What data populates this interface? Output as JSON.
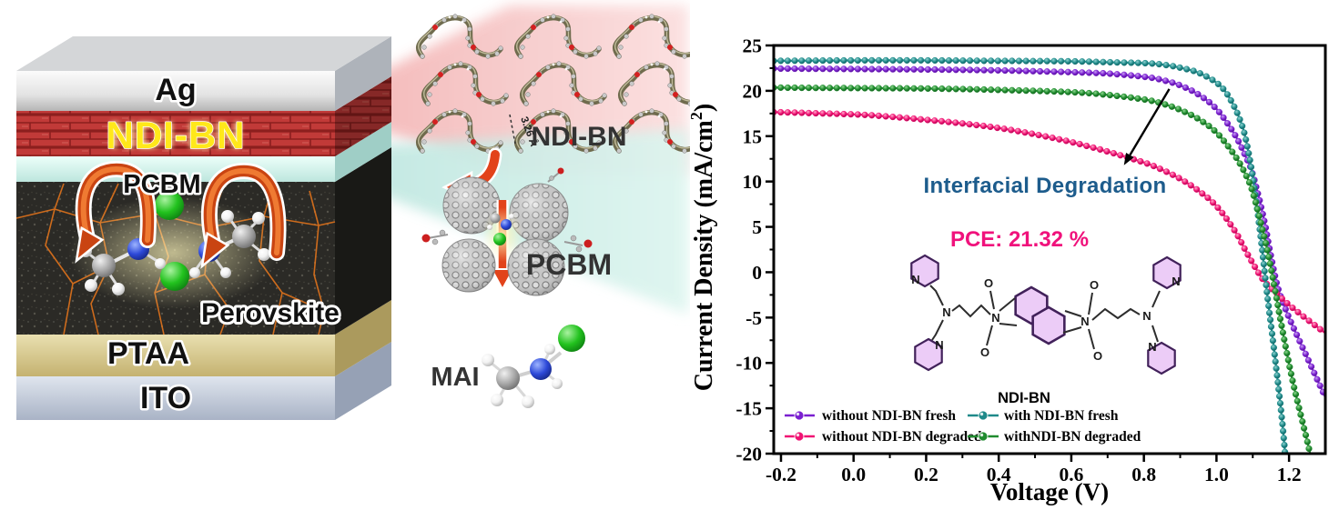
{
  "figure": {
    "device": {
      "layers": [
        {
          "label": "Ag",
          "color": "#d9d9d9"
        },
        {
          "label": "NDI-BN",
          "color": "#c13a38",
          "label_color": "#ffe81a"
        },
        {
          "label": "PCBM",
          "color": "#d9f3ec"
        },
        {
          "label": "Perovskite",
          "color": "#2b2a26"
        },
        {
          "label": "PTAA",
          "color": "#d8cc90"
        },
        {
          "label": "ITO",
          "color": "#c6cdd9"
        }
      ]
    },
    "molecular": {
      "ndi_bn": "NDI-BN",
      "pcbm": "PCBM",
      "mai": "MAI",
      "pi_distance": "3.26 Å"
    }
  },
  "chart_extras": {
    "n": "N",
    "o": "O"
  },
  "chart_data": {
    "type": "line",
    "title": "",
    "xlabel": "Voltage (V)",
    "ylabel": "Current Density (mA/cm²)",
    "ylabel_parts": [
      "Current Density (mA/cm",
      "2",
      ")"
    ],
    "xlim": [
      -0.22,
      1.3
    ],
    "ylim": [
      -20,
      25
    ],
    "grid": false,
    "x_ticks": [
      -0.2,
      0.0,
      0.2,
      0.4,
      0.6,
      0.8,
      1.0,
      1.2
    ],
    "x_tick_labels": [
      "-0.2",
      "0.0",
      "0.2",
      "0.4",
      "0.6",
      "0.8",
      "1.0",
      "1.2"
    ],
    "x_minor_step": 0.1,
    "y_ticks": [
      25,
      20,
      15,
      10,
      5,
      0,
      -5,
      -10,
      -15,
      -20
    ],
    "y_tick_labels": [
      "25",
      "20",
      "15",
      "10",
      "5",
      "0",
      "-5",
      "-10",
      "-15",
      "-20"
    ],
    "y_minor_step": 2.5,
    "legend_position": "bottom-left-inside",
    "annotations": {
      "interfacial": {
        "text": "Interfacial Degradation",
        "color": "#1d5c8c"
      },
      "pce": {
        "text": "PCE: 21.32 %",
        "color": "#f0127c"
      },
      "molecule_label": {
        "text": "NDI-BN"
      },
      "arrow": {
        "from_v": 0.87,
        "from_j": 20.2,
        "to_v": 0.745,
        "to_j": 11.8
      }
    },
    "series": [
      {
        "name": "without NDI-BN fresh",
        "color": "#7a1fd0",
        "light": "#c9a0f2",
        "points": [
          [
            -0.22,
            22.45
          ],
          [
            0,
            22.4
          ],
          [
            0.2,
            22.35
          ],
          [
            0.4,
            22.25
          ],
          [
            0.6,
            22.05
          ],
          [
            0.7,
            21.9
          ],
          [
            0.8,
            21.55
          ],
          [
            0.85,
            21.2
          ],
          [
            0.9,
            20.6
          ],
          [
            0.95,
            19.6
          ],
          [
            1,
            18
          ],
          [
            1.05,
            15.2
          ],
          [
            1.08,
            12.8
          ],
          [
            1.1,
            10.8
          ],
          [
            1.13,
            6
          ],
          [
            1.15,
            1.8
          ],
          [
            1.17,
            -1.8
          ],
          [
            1.2,
            -5
          ],
          [
            1.25,
            -9.4
          ],
          [
            1.3,
            -13.8
          ]
        ]
      },
      {
        "name": "without NDI-BN degraded",
        "color": "#f01273",
        "light": "#ffaacb",
        "points": [
          [
            -0.22,
            17.65
          ],
          [
            0,
            17.4
          ],
          [
            0.1,
            17.15
          ],
          [
            0.2,
            16.8
          ],
          [
            0.3,
            16.4
          ],
          [
            0.4,
            15.9
          ],
          [
            0.5,
            15.2
          ],
          [
            0.6,
            14.35
          ],
          [
            0.7,
            13.3
          ],
          [
            0.8,
            12.1
          ],
          [
            0.85,
            11.3
          ],
          [
            0.9,
            10.3
          ],
          [
            0.95,
            9
          ],
          [
            1,
            7.3
          ],
          [
            1.05,
            4.6
          ],
          [
            1.08,
            2.4
          ],
          [
            1.1,
            1
          ],
          [
            1.13,
            -0.9
          ],
          [
            1.17,
            -2.5
          ],
          [
            1.2,
            -3.6
          ],
          [
            1.25,
            -5.2
          ],
          [
            1.3,
            -6.7
          ]
        ]
      },
      {
        "name": "with NDI-BN fresh",
        "color": "#1f8a8a",
        "light": "#8fd2cf",
        "points": [
          [
            -0.22,
            23.3
          ],
          [
            0,
            23.35
          ],
          [
            0.2,
            23.35
          ],
          [
            0.4,
            23.3
          ],
          [
            0.6,
            23.25
          ],
          [
            0.7,
            23.15
          ],
          [
            0.8,
            23.05
          ],
          [
            0.85,
            22.9
          ],
          [
            0.9,
            22.55
          ],
          [
            0.95,
            22
          ],
          [
            1,
            20.9
          ],
          [
            1.03,
            19.6
          ],
          [
            1.06,
            17.3
          ],
          [
            1.08,
            14.8
          ],
          [
            1.1,
            10.5
          ],
          [
            1.12,
            4.5
          ],
          [
            1.14,
            -2.5
          ],
          [
            1.16,
            -9
          ],
          [
            1.18,
            -16
          ],
          [
            1.19,
            -20.4
          ]
        ]
      },
      {
        "name": "withNDI-BN degraded",
        "color": "#1f8b2e",
        "light": "#8fd890",
        "points": [
          [
            -0.22,
            20.35
          ],
          [
            0,
            20.3
          ],
          [
            0.2,
            20.25
          ],
          [
            0.4,
            20.1
          ],
          [
            0.6,
            19.85
          ],
          [
            0.7,
            19.55
          ],
          [
            0.8,
            19.05
          ],
          [
            0.85,
            18.6
          ],
          [
            0.9,
            17.9
          ],
          [
            0.95,
            16.9
          ],
          [
            1,
            15.4
          ],
          [
            1.05,
            12.9
          ],
          [
            1.08,
            10.8
          ],
          [
            1.1,
            8.8
          ],
          [
            1.13,
            4.2
          ],
          [
            1.15,
            0.5
          ],
          [
            1.18,
            -6
          ],
          [
            1.21,
            -12
          ],
          [
            1.25,
            -18.6
          ],
          [
            1.26,
            -20.4
          ]
        ]
      }
    ]
  }
}
